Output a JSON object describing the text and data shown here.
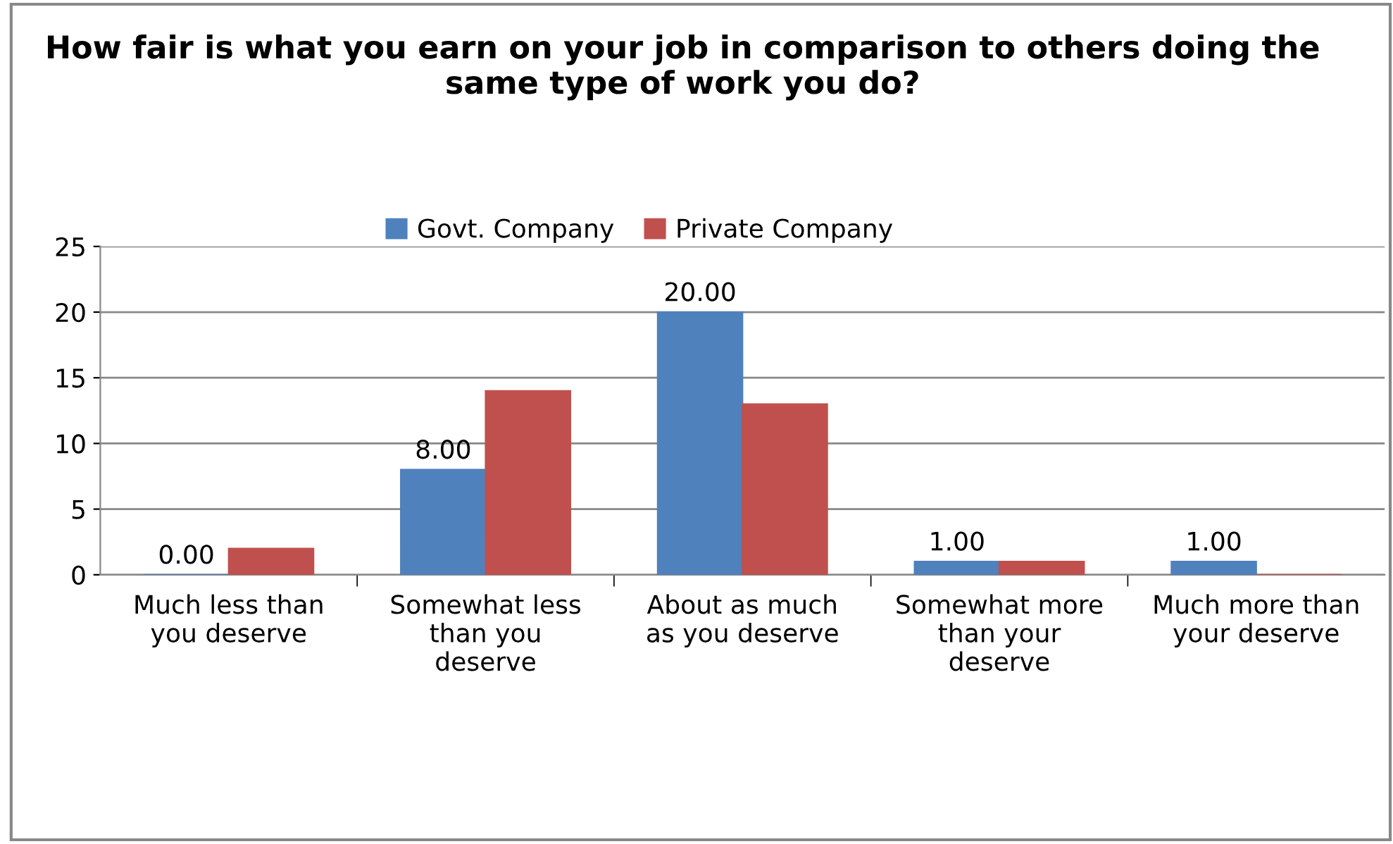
{
  "chart_data": {
    "type": "bar",
    "title": "How fair is what you earn on your job in comparison to others doing the same type of work you do?",
    "categories": [
      "Much less than you deserve",
      "Somewhat less than you deserve",
      "About as much as you deserve",
      "Somewhat more than your deserve",
      "Much more than your deserve"
    ],
    "series": [
      {
        "name": "Govt. Company",
        "color": "#4f81bd",
        "values": [
          0,
          8,
          20,
          1,
          1
        ],
        "value_labels": [
          "0.00",
          "8.00",
          "20.00",
          "1.00",
          "1.00"
        ]
      },
      {
        "name": "Private Company",
        "color": "#c0504d",
        "values": [
          2,
          14,
          13,
          1,
          0
        ]
      }
    ],
    "ylim": [
      0,
      25
    ],
    "yticks": [
      0,
      5,
      10,
      15,
      20,
      25
    ],
    "grid": "y",
    "legend": "top"
  }
}
